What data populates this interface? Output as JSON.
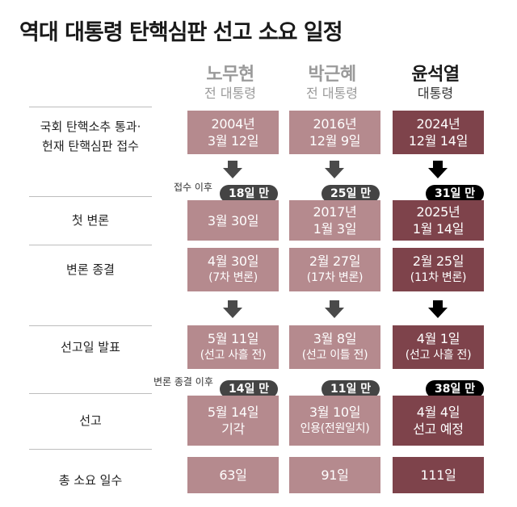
{
  "title": "역대 대통령 탄핵심판 선고 소요 일정",
  "columns": [
    {
      "name": "노무현",
      "role": "전 대통령"
    },
    {
      "name": "박근혜",
      "role": "전 대통령"
    },
    {
      "name": "윤석열",
      "role": "대통령"
    }
  ],
  "rows": [
    {
      "label": [
        "국회 탄핵소추 통과·",
        "헌재 탄핵심판 접수"
      ],
      "cells": [
        [
          "2004년",
          "3월 12일"
        ],
        [
          "2016년",
          "12월 9일"
        ],
        [
          "2024년",
          "12월 14일"
        ]
      ]
    },
    {
      "label": [
        "첫 변론"
      ],
      "cells": [
        [
          "3월 30일"
        ],
        [
          "2017년",
          "1월 3일"
        ],
        [
          "2025년",
          "1월 14일"
        ]
      ]
    },
    {
      "label": [
        "변론 종결"
      ],
      "cells": [
        [
          "4월 30일",
          "(7차 변론)"
        ],
        [
          "2월 27일",
          "(17차 변론)"
        ],
        [
          "2월 25일",
          "(11차 변론)"
        ]
      ]
    },
    {
      "label": [
        "선고일 발표"
      ],
      "cells": [
        [
          "5월 11일",
          "(선고 사흘 전)"
        ],
        [
          "3월 8일",
          "(선고 이틀 전)"
        ],
        [
          "4월 1일",
          "(선고 사흘 전)"
        ]
      ]
    },
    {
      "label": [
        "선고"
      ],
      "cells": [
        [
          "5월 14일",
          "기각"
        ],
        [
          "3월 10일",
          "인용(전원일치)"
        ],
        [
          "4월 4일",
          "선고 예정"
        ]
      ]
    },
    {
      "label": [
        "총 소요 일수"
      ],
      "cells": [
        [
          "63일"
        ],
        [
          "91일"
        ],
        [
          "111일"
        ]
      ]
    }
  ],
  "intervals": [
    {
      "note": "접수 이후",
      "values": [
        "18일 만",
        "25일 만",
        "31일 만"
      ]
    },
    {
      "note": "변론 종결 이후",
      "values": [
        "14일 만",
        "11일 만",
        "38일 만"
      ]
    }
  ],
  "colors": {
    "past_cell": "#b58a8e",
    "current_cell": "#7e434b",
    "past_badge": "#444444",
    "current_badge": "#000000"
  },
  "chart_data": {
    "type": "table",
    "title": "역대 대통령 탄핵심판 선고 소요 일정",
    "columns": [
      "노무현",
      "박근혜",
      "윤석열"
    ],
    "row_labels": [
      "국회 탄핵소추 통과·헌재 탄핵심판 접수",
      "첫 변론",
      "변론 종결",
      "선고일 발표",
      "선고",
      "총 소요 일수"
    ],
    "total_days": [
      63,
      91,
      111
    ],
    "days_from_filing_to_first_hearing": [
      18,
      25,
      31
    ],
    "days_from_hearing_end_to_verdict": [
      14,
      11,
      38
    ],
    "hearing_sessions": [
      7,
      17,
      11
    ]
  }
}
